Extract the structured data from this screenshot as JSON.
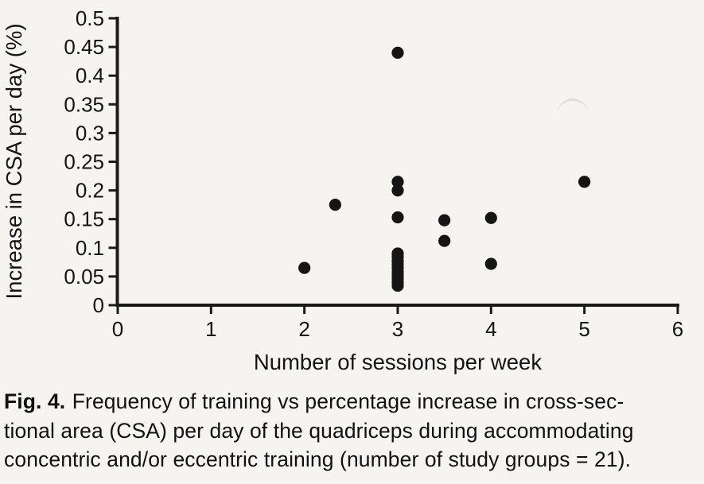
{
  "figure": {
    "caption": {
      "label": "Fig. 4.",
      "lines": [
        "Frequency of training vs percentage increase in cross-sec-",
        "tional area (CSA) per day of the quadriceps during accommodating",
        "concentric and/or eccentric training (number of study groups = 21)."
      ]
    }
  },
  "chart_data": {
    "type": "scatter",
    "title": "",
    "xlabel": "Number of sessions per week",
    "ylabel": "Increase in CSA per day (%)",
    "xlim": [
      0,
      6
    ],
    "ylim": [
      0,
      0.5
    ],
    "xticks": [
      0,
      1,
      2,
      3,
      4,
      5,
      6
    ],
    "xtick_labels": [
      "0",
      "1",
      "2",
      "3",
      "4",
      "5",
      "6"
    ],
    "yticks": [
      0,
      0.05,
      0.1,
      0.15,
      0.2,
      0.25,
      0.3,
      0.35,
      0.4,
      0.45,
      0.5
    ],
    "ytick_labels": [
      "0",
      "0.05",
      "0.1",
      "0.15",
      "0.2",
      "0.25",
      "0.3",
      "0.35",
      "0.4",
      "0.45",
      "0.5"
    ],
    "grid": false,
    "legend": false,
    "marker_color": "#151515",
    "axis_color": "#1a1a1a",
    "background_color": "#f5f4f1",
    "points": [
      {
        "x": 2,
        "y": 0.065
      },
      {
        "x": 2.33,
        "y": 0.175
      },
      {
        "x": 3,
        "y": 0.44
      },
      {
        "x": 3,
        "y": 0.215
      },
      {
        "x": 3,
        "y": 0.2
      },
      {
        "x": 3,
        "y": 0.153
      },
      {
        "x": 3,
        "y": 0.09
      },
      {
        "x": 3,
        "y": 0.084
      },
      {
        "x": 3,
        "y": 0.077
      },
      {
        "x": 3,
        "y": 0.071
      },
      {
        "x": 3,
        "y": 0.065
      },
      {
        "x": 3,
        "y": 0.058
      },
      {
        "x": 3,
        "y": 0.052
      },
      {
        "x": 3,
        "y": 0.046
      },
      {
        "x": 3,
        "y": 0.04
      },
      {
        "x": 3,
        "y": 0.034
      },
      {
        "x": 3.5,
        "y": 0.148
      },
      {
        "x": 3.5,
        "y": 0.112
      },
      {
        "x": 4,
        "y": 0.152
      },
      {
        "x": 4,
        "y": 0.072
      },
      {
        "x": 5,
        "y": 0.215
      }
    ]
  }
}
